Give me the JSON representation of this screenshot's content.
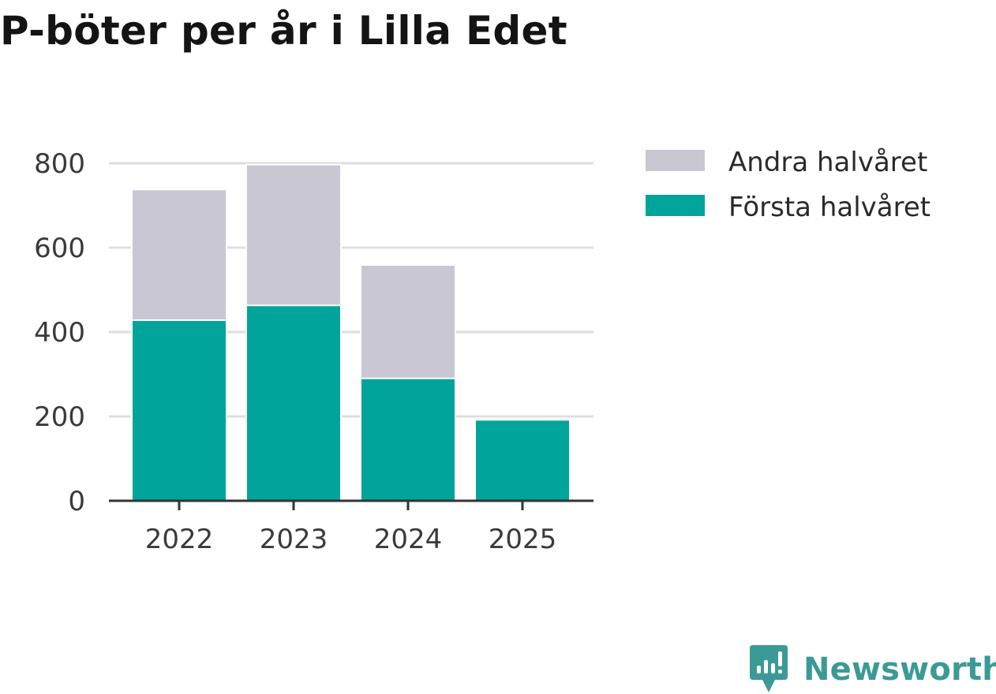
{
  "chart_data": {
    "type": "bar",
    "stacked": true,
    "title": "P-böter per år i Lilla Edet",
    "categories": [
      "2022",
      "2023",
      "2024",
      "2025"
    ],
    "series": [
      {
        "name": "Första halvåret",
        "values": [
          430,
          465,
          292,
          190
        ],
        "color": "#00a49a"
      },
      {
        "name": "Andra halvåret",
        "values": [
          306,
          330,
          265,
          0
        ],
        "color": "#c8c7d2"
      }
    ],
    "legend_order": [
      "Andra halvåret",
      "Första halvåret"
    ],
    "yticks": [
      0,
      200,
      400,
      600,
      800
    ],
    "ylim": [
      0,
      800
    ],
    "xlabel": "",
    "ylabel": "",
    "grid": true,
    "legend_position": "right"
  },
  "brand": {
    "name": "Newsworthy",
    "color": "#3b9a95"
  }
}
